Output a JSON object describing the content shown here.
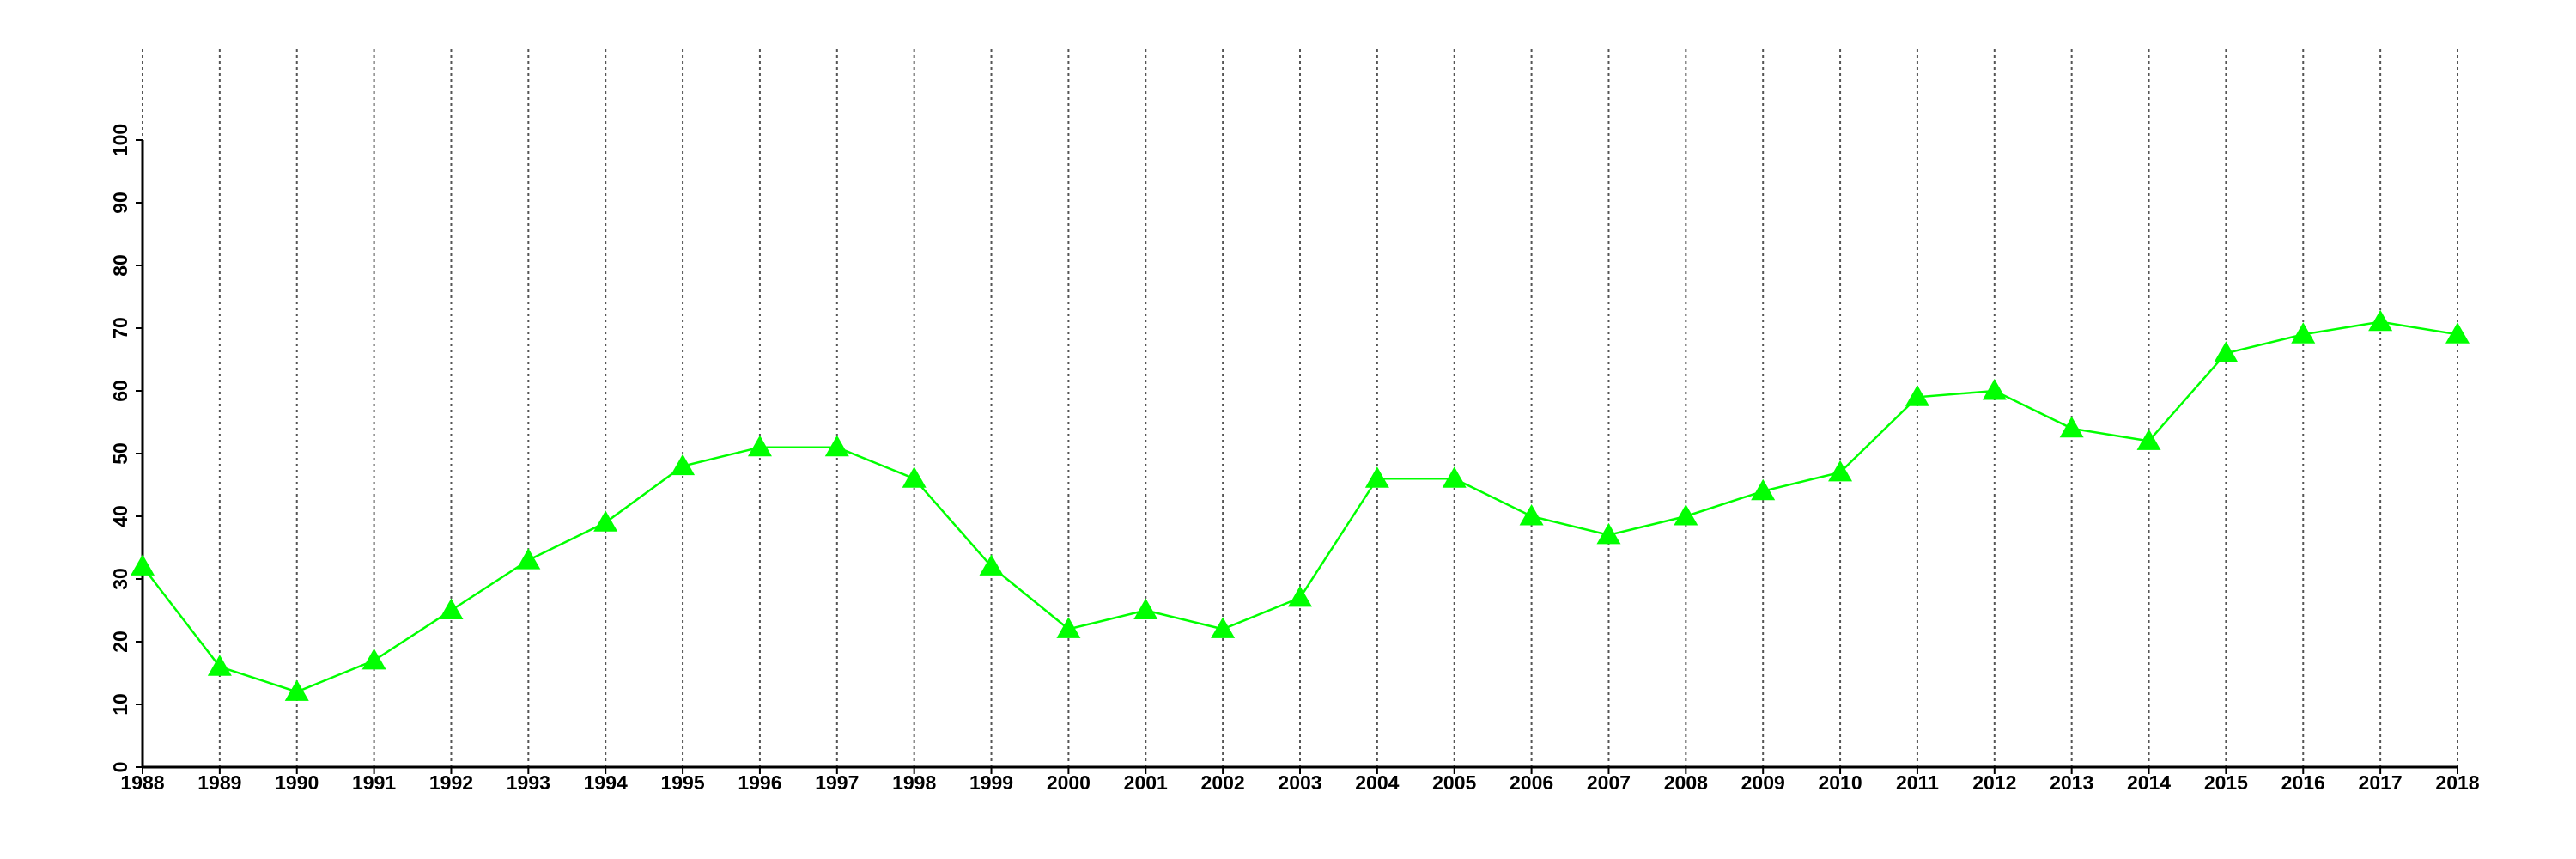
{
  "chart_data": {
    "type": "line",
    "x": [
      1988,
      1989,
      1990,
      1991,
      1992,
      1993,
      1994,
      1995,
      1996,
      1997,
      1998,
      1999,
      2000,
      2001,
      2002,
      2003,
      2004,
      2005,
      2006,
      2007,
      2008,
      2009,
      2010,
      2011,
      2012,
      2013,
      2014,
      2015,
      2016,
      2017,
      2018
    ],
    "series": [
      {
        "color": "#00ff00",
        "marker": "triangle",
        "values": [
          32,
          16,
          12,
          17,
          25,
          33,
          39,
          48,
          51,
          51,
          46,
          32,
          22,
          25,
          22,
          27,
          46,
          46,
          40,
          37,
          40,
          44,
          47,
          59,
          60,
          54,
          52,
          66,
          69,
          71,
          69
        ]
      }
    ],
    "xlim": [
      1988,
      2018
    ],
    "xticks": [
      1988,
      1989,
      1990,
      1991,
      1992,
      1993,
      1994,
      1995,
      1996,
      1997,
      1998,
      1999,
      2000,
      2001,
      2002,
      2003,
      2004,
      2005,
      2006,
      2007,
      2008,
      2009,
      2010,
      2011,
      2012,
      2013,
      2014,
      2015,
      2016,
      2017,
      2018
    ],
    "ylim": [
      0,
      100
    ],
    "yticks": [
      0,
      10,
      20,
      30,
      40,
      50,
      60,
      70,
      80,
      90,
      100
    ],
    "grid": "x"
  }
}
